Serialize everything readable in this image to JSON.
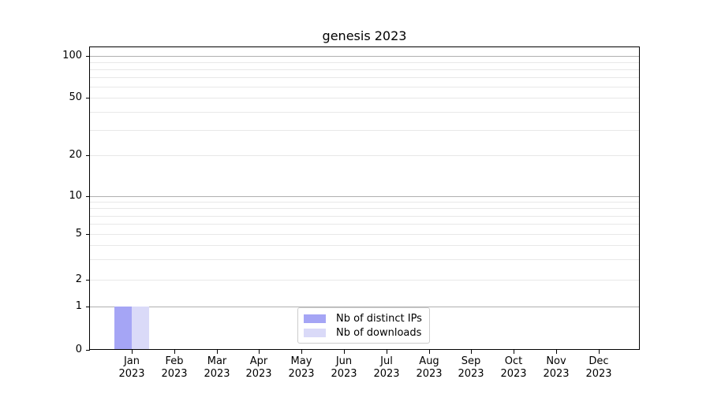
{
  "chart_data": {
    "type": "bar",
    "title": "genesis 2023",
    "categories": [
      "Jan\n2023",
      "Feb\n2023",
      "Mar\n2023",
      "Apr\n2023",
      "May\n2023",
      "Jun\n2023",
      "Jul\n2023",
      "Aug\n2023",
      "Sep\n2023",
      "Oct\n2023",
      "Nov\n2023",
      "Dec\n2023"
    ],
    "series": [
      {
        "name": "Nb of distinct IPs",
        "color": "#a5a5f5",
        "values": [
          1,
          0,
          0,
          0,
          0,
          0,
          0,
          0,
          0,
          0,
          0,
          0
        ]
      },
      {
        "name": "Nb of downloads",
        "color": "#dadaf8",
        "values": [
          1,
          0,
          0,
          0,
          0,
          0,
          0,
          0,
          0,
          0,
          0,
          0
        ]
      }
    ],
    "xlabel": "",
    "ylabel": "",
    "yscale": "symlog",
    "ylim": [
      0,
      117
    ],
    "y_ticks": [
      0,
      1,
      2,
      5,
      10,
      20,
      50,
      100
    ],
    "y_major_gridlines": [
      1,
      10,
      100
    ],
    "y_minor_gridlines": [
      3,
      4,
      6,
      7,
      8,
      9,
      30,
      40,
      60,
      70,
      80,
      90
    ],
    "grid": true,
    "legend_position": "lower center",
    "colors": {
      "major_grid": "#b0b0b0",
      "minor_grid": "#e8e8e8",
      "axis": "#000000",
      "text": "#000000",
      "legend_border": "#cccccc"
    }
  }
}
